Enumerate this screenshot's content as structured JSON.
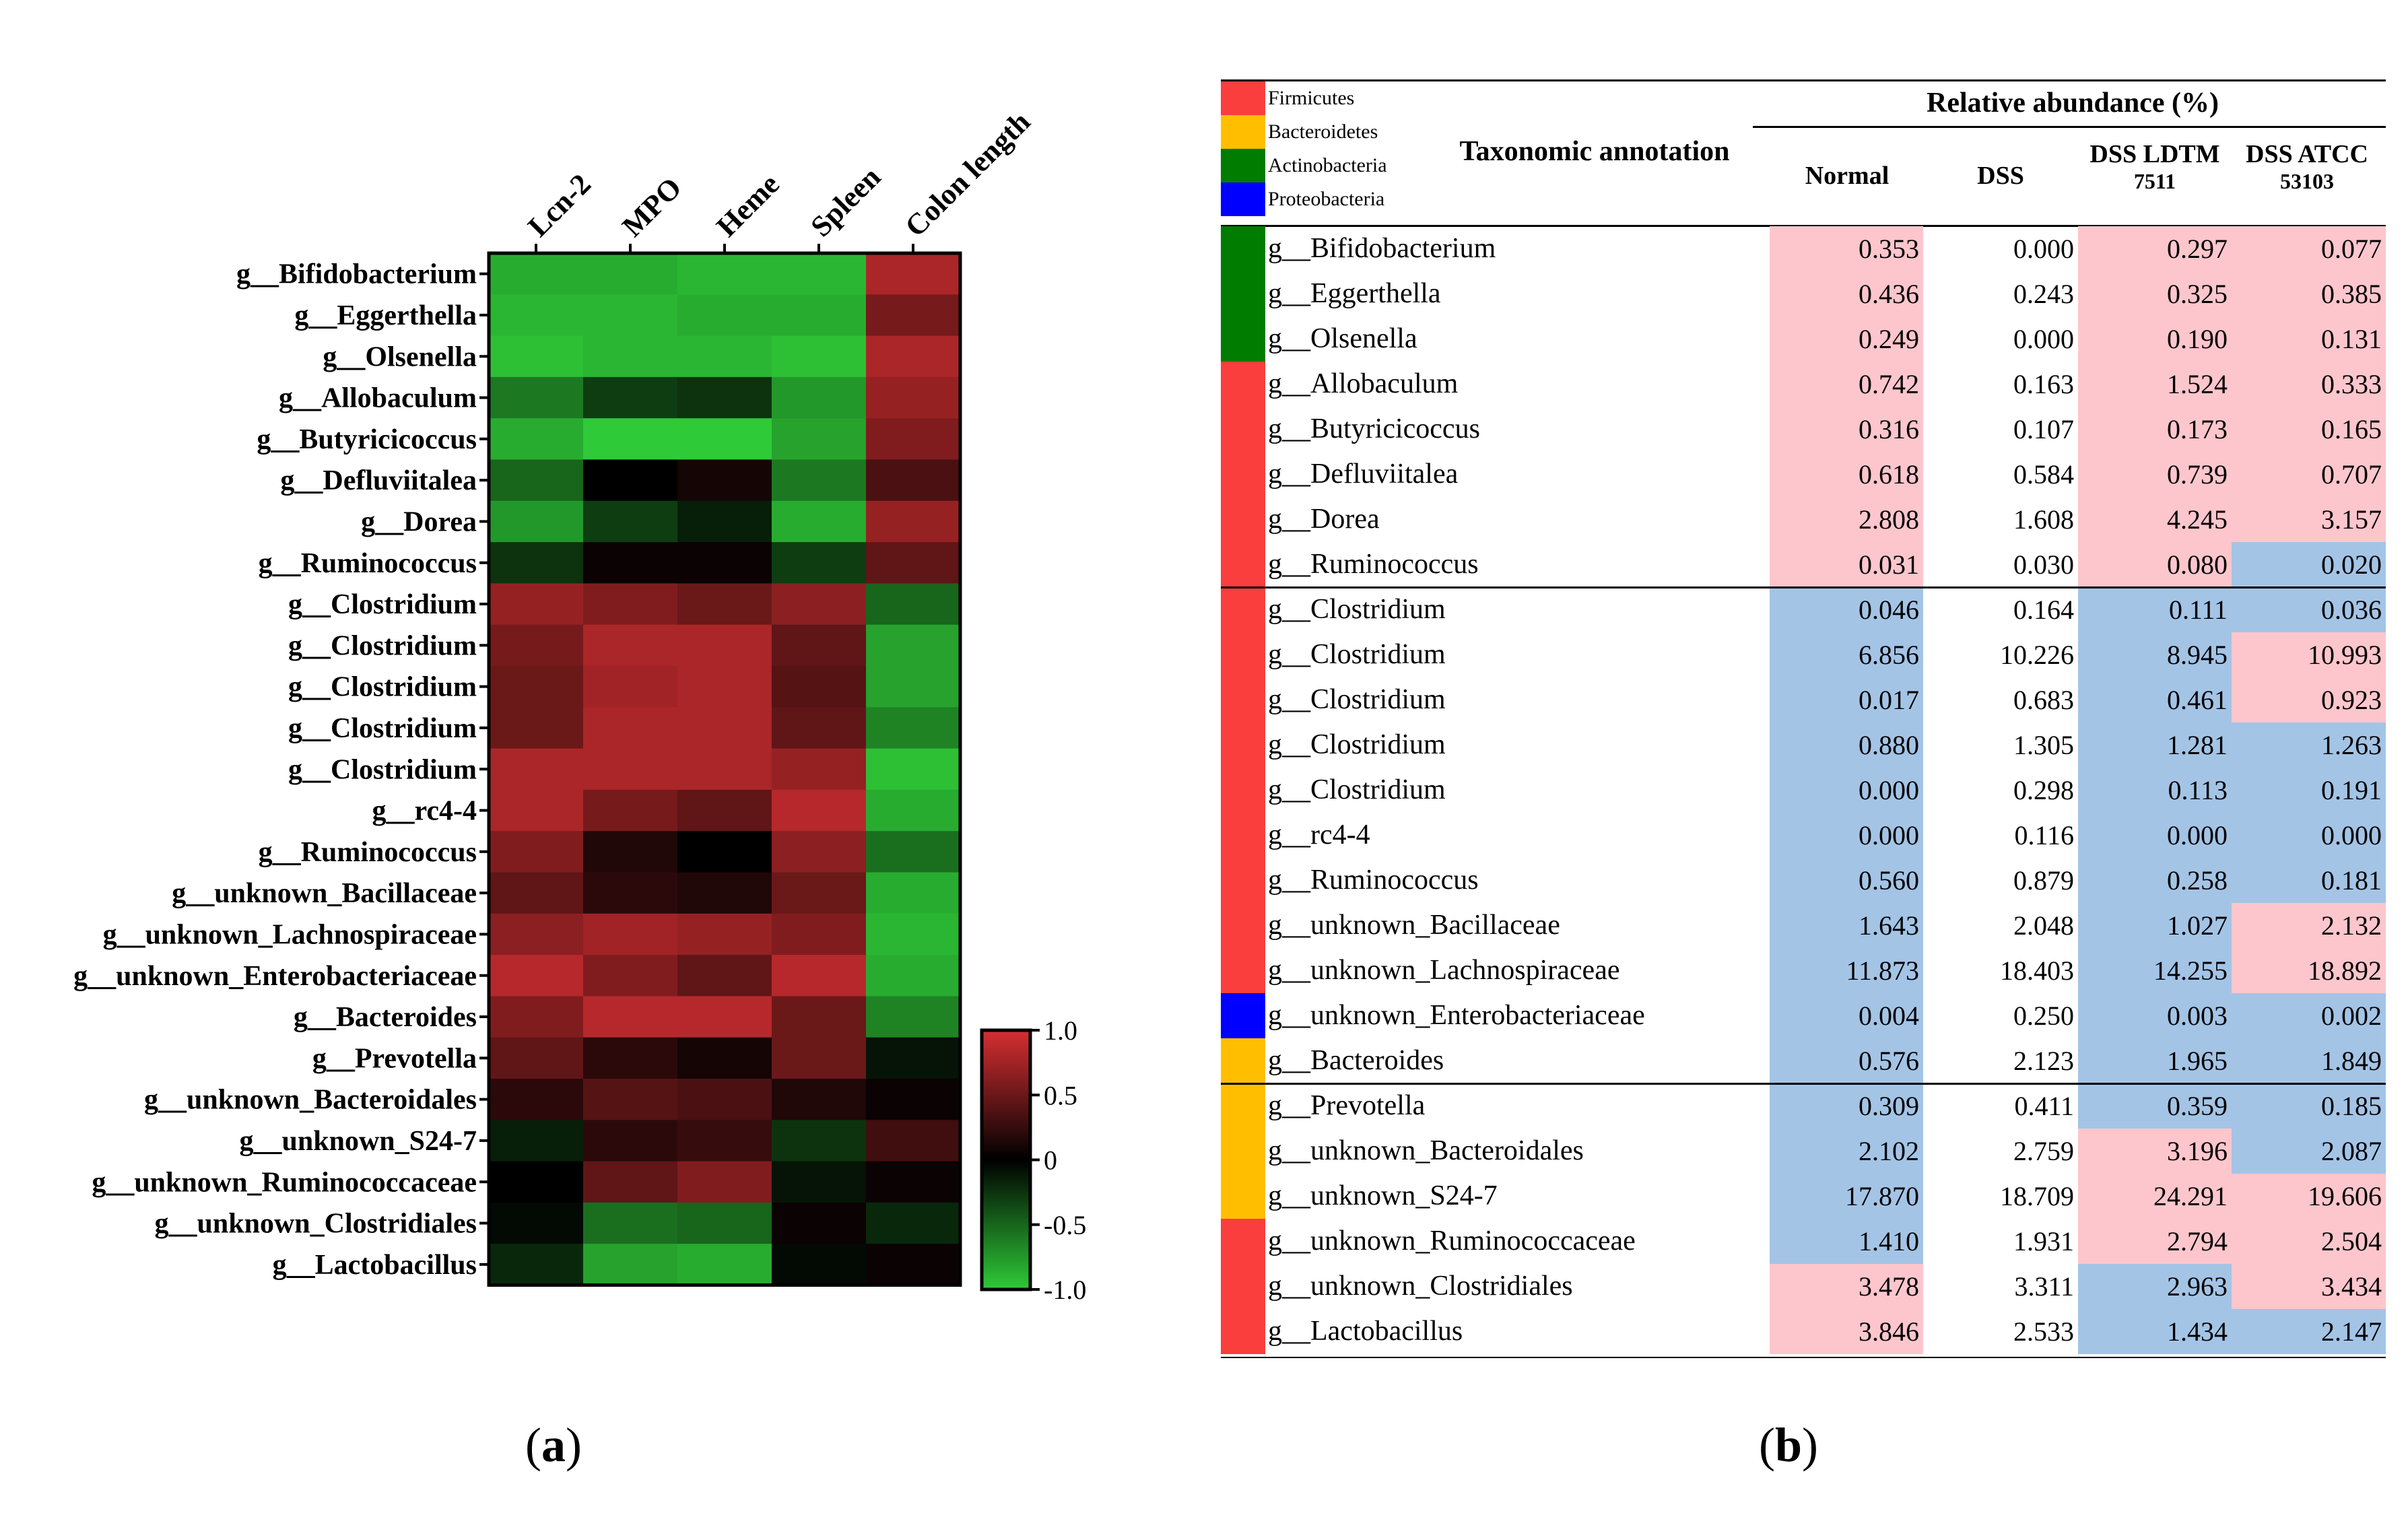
{
  "panel_labels": {
    "a": "a",
    "b": "b"
  },
  "chart_data": {
    "type": "heatmap",
    "columns": [
      "Lcn-2",
      "MPO",
      "Heme",
      "Spleen",
      "Colon length"
    ],
    "rows": [
      "g__Bifidobacterium",
      "g__Eggerthella",
      "g__Olsenella",
      "g__Allobaculum",
      "g__Butyricicoccus",
      "g__Defluviitalea",
      "g__Dorea",
      "g__Ruminococcus",
      "g__Clostridium",
      "g__Clostridium",
      "g__Clostridium",
      "g__Clostridium",
      "g__Clostridium",
      "g__rc4-4",
      "g__Ruminococcus",
      "g__unknown_Bacillaceae",
      "g__unknown_Lachnospiraceae",
      "g__unknown_Enterobacteriaceae",
      "g__Bacteroides",
      "g__Prevotella",
      "g__unknown_Bacteroidales",
      "g__unknown_S24-7",
      "g__unknown_Ruminococcaceae",
      "g__unknown_Clostridiales",
      "g__Lactobacillus"
    ],
    "values": [
      [
        -0.85,
        -0.85,
        -0.9,
        -0.9,
        0.8
      ],
      [
        -0.9,
        -0.9,
        -0.85,
        -0.85,
        0.55
      ],
      [
        -0.95,
        -0.9,
        -0.9,
        -0.95,
        0.8
      ],
      [
        -0.6,
        -0.3,
        -0.25,
        -0.75,
        0.7
      ],
      [
        -0.85,
        -1.0,
        -1.0,
        -0.8,
        0.6
      ],
      [
        -0.5,
        0.0,
        0.1,
        -0.6,
        0.35
      ],
      [
        -0.75,
        -0.3,
        -0.15,
        -0.85,
        0.7
      ],
      [
        -0.25,
        0.05,
        0.05,
        -0.3,
        0.45
      ],
      [
        0.7,
        0.6,
        0.5,
        0.65,
        -0.5
      ],
      [
        0.55,
        0.8,
        0.8,
        0.45,
        -0.8
      ],
      [
        0.5,
        0.75,
        0.8,
        0.4,
        -0.8
      ],
      [
        0.5,
        0.8,
        0.8,
        0.45,
        -0.65
      ],
      [
        0.8,
        0.8,
        0.8,
        0.7,
        -0.95
      ],
      [
        0.8,
        0.55,
        0.45,
        0.85,
        -0.85
      ],
      [
        0.6,
        0.15,
        0.0,
        0.65,
        -0.55
      ],
      [
        0.45,
        0.2,
        0.15,
        0.5,
        -0.85
      ],
      [
        0.65,
        0.75,
        0.7,
        0.6,
        -0.9
      ],
      [
        0.85,
        0.6,
        0.45,
        0.85,
        -0.85
      ],
      [
        0.6,
        0.85,
        0.85,
        0.5,
        -0.65
      ],
      [
        0.45,
        0.2,
        0.1,
        0.5,
        -0.1
      ],
      [
        0.2,
        0.4,
        0.35,
        0.15,
        0.05
      ],
      [
        -0.15,
        0.2,
        0.25,
        -0.25,
        0.3
      ],
      [
        0.0,
        0.45,
        0.6,
        -0.1,
        0.05
      ],
      [
        -0.05,
        -0.55,
        -0.5,
        0.05,
        -0.2
      ],
      [
        -0.2,
        -0.8,
        -0.85,
        -0.05,
        0.05
      ]
    ],
    "colorscale": {
      "min": -1.0,
      "max": 1.0,
      "low_color": "#2fca38",
      "mid_color": "#000000",
      "high_color": "#d62f32"
    },
    "colorbar_ticks": [
      "1.0",
      "0.5",
      "0",
      "-0.5",
      "-1.0"
    ]
  },
  "table": {
    "legend": [
      {
        "label": "Firmicutes",
        "color": "#fa3d3d"
      },
      {
        "label": "Bacteroidetes",
        "color": "#ffbf00"
      },
      {
        "label": "Actinobacteria",
        "color": "#007c00"
      },
      {
        "label": "Proteobacteria",
        "color": "#0000ff"
      }
    ],
    "title": "Taxonomic annotation",
    "group_header": "Relative abundance (%)",
    "columns": [
      {
        "line1": "Normal",
        "line2": ""
      },
      {
        "line1": "DSS",
        "line2": ""
      },
      {
        "line1": "DSS LDTM",
        "line2": "7511"
      },
      {
        "line1": "DSS ATCC",
        "line2": "53103"
      }
    ],
    "rows": [
      {
        "genus": "g__Bifidobacterium",
        "phylum": "#007c00",
        "values": [
          "0.353",
          "0.000",
          "0.297",
          "0.077"
        ],
        "shade": [
          "pink",
          "none",
          "pink",
          "pink"
        ]
      },
      {
        "genus": "g__Eggerthella",
        "phylum": "#007c00",
        "values": [
          "0.436",
          "0.243",
          "0.325",
          "0.385"
        ],
        "shade": [
          "pink",
          "none",
          "pink",
          "pink"
        ]
      },
      {
        "genus": "g__Olsenella",
        "phylum": "#007c00",
        "values": [
          "0.249",
          "0.000",
          "0.190",
          "0.131"
        ],
        "shade": [
          "pink",
          "none",
          "pink",
          "pink"
        ]
      },
      {
        "genus": "g__Allobaculum",
        "phylum": "#fa3d3d",
        "values": [
          "0.742",
          "0.163",
          "1.524",
          "0.333"
        ],
        "shade": [
          "pink",
          "none",
          "pink",
          "pink"
        ]
      },
      {
        "genus": "g__Butyricicoccus",
        "phylum": "#fa3d3d",
        "values": [
          "0.316",
          "0.107",
          "0.173",
          "0.165"
        ],
        "shade": [
          "pink",
          "none",
          "pink",
          "pink"
        ]
      },
      {
        "genus": "g__Defluviitalea",
        "phylum": "#fa3d3d",
        "values": [
          "0.618",
          "0.584",
          "0.739",
          "0.707"
        ],
        "shade": [
          "pink",
          "none",
          "pink",
          "pink"
        ]
      },
      {
        "genus": "g__Dorea",
        "phylum": "#fa3d3d",
        "values": [
          "2.808",
          "1.608",
          "4.245",
          "3.157"
        ],
        "shade": [
          "pink",
          "none",
          "pink",
          "pink"
        ]
      },
      {
        "genus": "g__Ruminococcus",
        "phylum": "#fa3d3d",
        "values": [
          "0.031",
          "0.030",
          "0.080",
          "0.020"
        ],
        "shade": [
          "pink",
          "none",
          "pink",
          "blue"
        ]
      },
      {
        "genus": "g__Clostridium",
        "phylum": "#fa3d3d",
        "values": [
          "0.046",
          "0.164",
          "0.111",
          "0.036"
        ],
        "shade": [
          "blue",
          "none",
          "blue",
          "blue"
        ]
      },
      {
        "genus": "g__Clostridium",
        "phylum": "#fa3d3d",
        "values": [
          "6.856",
          "10.226",
          "8.945",
          "10.993"
        ],
        "shade": [
          "blue",
          "none",
          "blue",
          "pink"
        ]
      },
      {
        "genus": "g__Clostridium",
        "phylum": "#fa3d3d",
        "values": [
          "0.017",
          "0.683",
          "0.461",
          "0.923"
        ],
        "shade": [
          "blue",
          "none",
          "blue",
          "pink"
        ]
      },
      {
        "genus": "g__Clostridium",
        "phylum": "#fa3d3d",
        "values": [
          "0.880",
          "1.305",
          "1.281",
          "1.263"
        ],
        "shade": [
          "blue",
          "none",
          "blue",
          "blue"
        ]
      },
      {
        "genus": "g__Clostridium",
        "phylum": "#fa3d3d",
        "values": [
          "0.000",
          "0.298",
          "0.113",
          "0.191"
        ],
        "shade": [
          "blue",
          "none",
          "blue",
          "blue"
        ]
      },
      {
        "genus": "g__rc4-4",
        "phylum": "#fa3d3d",
        "values": [
          "0.000",
          "0.116",
          "0.000",
          "0.000"
        ],
        "shade": [
          "blue",
          "none",
          "blue",
          "blue"
        ]
      },
      {
        "genus": "g__Ruminococcus",
        "phylum": "#fa3d3d",
        "values": [
          "0.560",
          "0.879",
          "0.258",
          "0.181"
        ],
        "shade": [
          "blue",
          "none",
          "blue",
          "blue"
        ]
      },
      {
        "genus": "g__unknown_Bacillaceae",
        "phylum": "#fa3d3d",
        "values": [
          "1.643",
          "2.048",
          "1.027",
          "2.132"
        ],
        "shade": [
          "blue",
          "none",
          "blue",
          "pink"
        ]
      },
      {
        "genus": "g__unknown_Lachnospiraceae",
        "phylum": "#fa3d3d",
        "values": [
          "11.873",
          "18.403",
          "14.255",
          "18.892"
        ],
        "shade": [
          "blue",
          "none",
          "blue",
          "pink"
        ]
      },
      {
        "genus": "g__unknown_Enterobacteriaceae",
        "phylum": "#0000ff",
        "values": [
          "0.004",
          "0.250",
          "0.003",
          "0.002"
        ],
        "shade": [
          "blue",
          "none",
          "blue",
          "blue"
        ]
      },
      {
        "genus": "g__Bacteroides",
        "phylum": "#ffbf00",
        "values": [
          "0.576",
          "2.123",
          "1.965",
          "1.849"
        ],
        "shade": [
          "blue",
          "none",
          "blue",
          "blue"
        ]
      },
      {
        "genus": "g__Prevotella",
        "phylum": "#ffbf00",
        "values": [
          "0.309",
          "0.411",
          "0.359",
          "0.185"
        ],
        "shade": [
          "blue",
          "none",
          "blue",
          "blue"
        ]
      },
      {
        "genus": "g__unknown_Bacteroidales",
        "phylum": "#ffbf00",
        "values": [
          "2.102",
          "2.759",
          "3.196",
          "2.087"
        ],
        "shade": [
          "blue",
          "none",
          "pink",
          "blue"
        ]
      },
      {
        "genus": "g__unknown_S24-7",
        "phylum": "#ffbf00",
        "values": [
          "17.870",
          "18.709",
          "24.291",
          "19.606"
        ],
        "shade": [
          "blue",
          "none",
          "pink",
          "pink"
        ]
      },
      {
        "genus": "g__unknown_Ruminococcaceae",
        "phylum": "#fa3d3d",
        "values": [
          "1.410",
          "1.931",
          "2.794",
          "2.504"
        ],
        "shade": [
          "blue",
          "none",
          "pink",
          "pink"
        ]
      },
      {
        "genus": "g__unknown_Clostridiales",
        "phylum": "#fa3d3d",
        "values": [
          "3.478",
          "3.311",
          "2.963",
          "3.434"
        ],
        "shade": [
          "pink",
          "none",
          "blue",
          "pink"
        ]
      },
      {
        "genus": "g__Lactobacillus",
        "phylum": "#fa3d3d",
        "values": [
          "3.846",
          "2.533",
          "1.434",
          "2.147"
        ],
        "shade": [
          "pink",
          "none",
          "blue",
          "blue"
        ]
      }
    ]
  }
}
